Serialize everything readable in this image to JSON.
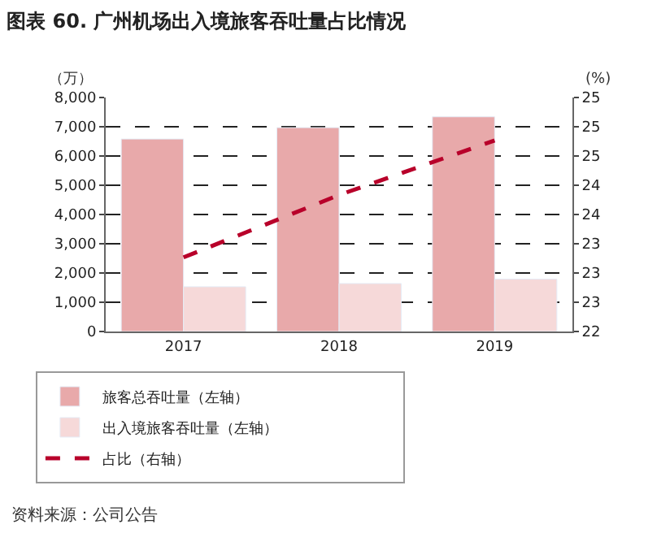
{
  "chart_data": {
    "type": "bar",
    "title": "图表 60. 广州机场出入境旅客吞吐量占比情况",
    "categories": [
      "2017",
      "2018",
      "2019"
    ],
    "series": [
      {
        "name": "旅客总吞吐量（左轴）",
        "color": "#e8a9aa",
        "values": [
          6580,
          6970,
          7340
        ]
      },
      {
        "name": "出入境旅客吞吐量（左轴）",
        "color": "#f6d9d9",
        "values": [
          1530,
          1640,
          1790
        ]
      },
      {
        "name": "占比（右轴）",
        "type": "line",
        "axis": "y2",
        "color": "#b8002a",
        "line_style": "dashed",
        "marker": "none",
        "values": [
          23.2,
          24.0,
          24.7
        ]
      }
    ],
    "ylabel": "（万）",
    "y2label": "(%)",
    "ylim": [
      0,
      8000
    ],
    "yticks": [
      0,
      {
        "value": 1000,
        "label": "1,000"
      },
      {
        "value": 2000,
        "label": "2,000"
      },
      {
        "value": 3000,
        "label": "3,000"
      },
      {
        "value": 4000,
        "label": "4,000"
      },
      {
        "value": 5000,
        "label": "5,000"
      },
      {
        "value": 6000,
        "label": "6,000"
      },
      {
        "value": 7000,
        "label": "7,000"
      },
      {
        "value": 8000,
        "label": "8,000"
      }
    ],
    "y2lim": [
      22.25,
      25.25
    ],
    "y2ticks": [
      {
        "value": 22.25,
        "label": "22"
      },
      {
        "value": 22.625,
        "label": "23"
      },
      {
        "value": 23.0,
        "label": "23"
      },
      {
        "value": 23.375,
        "label": "23"
      },
      {
        "value": 23.75,
        "label": "24"
      },
      {
        "value": 24.125,
        "label": "24"
      },
      {
        "value": 24.5,
        "label": "25"
      },
      {
        "value": 24.875,
        "label": "25"
      },
      {
        "value": 25.25,
        "label": "25"
      }
    ],
    "grid": "y",
    "legend": "bottom",
    "annotations": [
      "资料来源：公司公告"
    ]
  }
}
